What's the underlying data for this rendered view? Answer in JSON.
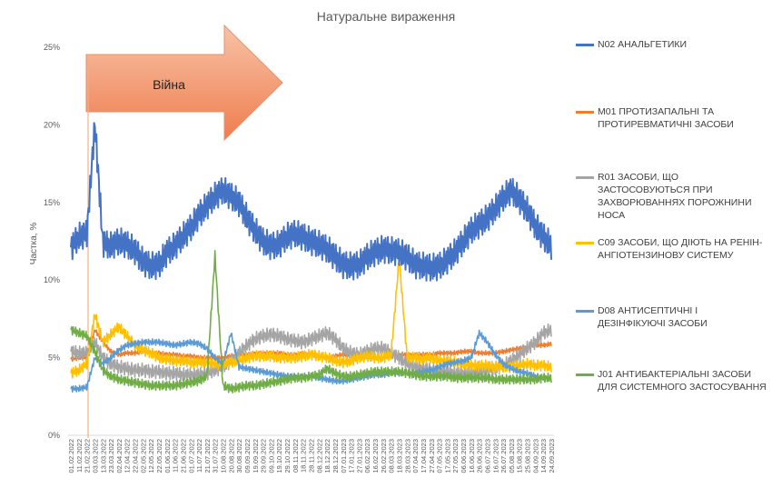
{
  "chart_data": {
    "type": "line",
    "title": "Натуральне вираження",
    "ylabel": "Частка, %",
    "xlabel": "",
    "ylim": [
      0,
      25
    ],
    "y_ticks": [
      "0%",
      "5%",
      "10%",
      "15%",
      "20%",
      "25%"
    ],
    "x_tick_labels": [
      "01.02.2022",
      "11.02.2022",
      "21.02.2022",
      "03.03.2022",
      "13.03.2022",
      "23.03.2022",
      "02.04.2022",
      "12.04.2022",
      "22.04.2022",
      "02.05.2022",
      "12.05.2022",
      "22.05.2022",
      "01.06.2022",
      "11.06.2022",
      "21.06.2022",
      "01.07.2022",
      "11.07.2022",
      "21.07.2022",
      "31.07.2022",
      "10.08.2022",
      "20.08.2022",
      "30.08.2022",
      "09.09.2022",
      "19.09.2022",
      "29.09.2022",
      "09.10.2022",
      "19.10.2022",
      "29.10.2022",
      "08.11.2022",
      "18.11.2022",
      "28.11.2022",
      "08.12.2022",
      "18.12.2022",
      "28.12.2022",
      "07.01.2023",
      "17.01.2023",
      "27.01.2023",
      "06.02.2023",
      "16.02.2023",
      "26.02.2023",
      "08.03.2023",
      "18.03.2023",
      "28.03.2023",
      "07.04.2023",
      "17.04.2023",
      "27.04.2023",
      "07.05.2023",
      "17.05.2023",
      "27.05.2023",
      "06.06.2023",
      "16.06.2023",
      "26.06.2023",
      "06.07.2023",
      "16.07.2023",
      "26.07.2023",
      "05.08.2023",
      "15.08.2023",
      "25.08.2023",
      "04.09.2023",
      "14.09.2023",
      "24.09.2023"
    ],
    "x_range": [
      "01.02.2022",
      "26.09.2023"
    ],
    "grid": "none",
    "legend_position": "right",
    "annotation": {
      "text": "Війна",
      "date": "24.02.2022"
    },
    "series": [
      {
        "name": "N02 АНАЛЬГЕТИКИ",
        "color": "#4472C4",
        "values": [
          12.1,
          12.8,
          13.0,
          20.1,
          12.4,
          12.2,
          12.5,
          12.3,
          11.9,
          11.2,
          10.9,
          11.0,
          11.8,
          12.2,
          12.8,
          13.4,
          14.2,
          14.8,
          15.4,
          15.8,
          15.4,
          15.0,
          14.0,
          13.2,
          12.5,
          12.2,
          12.3,
          12.8,
          13.0,
          12.8,
          12.5,
          12.3,
          12.0,
          11.5,
          11.0,
          10.9,
          11.0,
          11.5,
          11.8,
          12.0,
          11.9,
          11.8,
          11.5,
          11.0,
          10.9,
          10.8,
          10.9,
          11.3,
          11.8,
          12.5,
          13.2,
          13.6,
          14.0,
          14.6,
          15.3,
          15.8,
          15.2,
          14.5,
          13.5,
          12.8,
          12.2
        ]
      },
      {
        "name": "M01 ПРОТИЗАПАЛЬНІ ТА ПРОТИРЕВМАТИЧНІ ЗАСОБИ",
        "color": "#ED7D31",
        "values": [
          4.9,
          5.0,
          5.0,
          6.8,
          6.0,
          5.4,
          5.2,
          5.3,
          5.3,
          5.4,
          5.3,
          5.3,
          5.2,
          5.2,
          5.1,
          5.1,
          5.0,
          5.0,
          5.0,
          5.0,
          5.1,
          5.2,
          5.2,
          5.3,
          5.3,
          5.3,
          5.3,
          5.2,
          5.2,
          5.3,
          5.2,
          5.1,
          5.0,
          5.1,
          5.2,
          5.1,
          5.0,
          5.0,
          5.0,
          5.0,
          5.1,
          5.2,
          5.2,
          5.2,
          5.2,
          5.2,
          5.3,
          5.3,
          5.3,
          5.4,
          5.4,
          5.3,
          5.3,
          5.3,
          5.4,
          5.5,
          5.6,
          5.7,
          5.8,
          5.8,
          5.9
        ]
      },
      {
        "name": "R01 ЗАСОБИ, ЩО ЗАСТОСОВУЮТЬСЯ ПРИ ЗАХВОРЮВАННЯХ ПОРОЖНИНИ НОСА",
        "color": "#A5A5A5",
        "values": [
          5.4,
          5.3,
          5.3,
          6.0,
          5.0,
          4.6,
          4.4,
          4.3,
          4.2,
          4.2,
          4.1,
          4.1,
          4.0,
          4.0,
          3.9,
          3.9,
          3.9,
          4.0,
          4.2,
          4.4,
          4.8,
          5.3,
          5.8,
          6.2,
          6.4,
          6.5,
          6.4,
          6.2,
          6.1,
          6.0,
          6.2,
          6.4,
          6.6,
          6.2,
          5.6,
          5.3,
          5.2,
          5.4,
          5.6,
          5.6,
          5.3,
          5.0,
          4.6,
          4.4,
          4.3,
          4.2,
          4.1,
          4.1,
          4.0,
          4.0,
          4.0,
          4.1,
          4.2,
          4.3,
          4.5,
          4.8,
          5.2,
          5.6,
          6.0,
          6.6,
          6.8
        ]
      },
      {
        "name": "C09 ЗАСОБИ, ЩО ДІЮТЬ НА РЕНІН-АНГІОТЕНЗИНОВУ СИСТЕМУ",
        "color": "#FFC000",
        "values": [
          4.0,
          4.2,
          4.6,
          7.8,
          6.0,
          6.5,
          7.0,
          6.4,
          5.8,
          5.5,
          5.3,
          5.0,
          4.9,
          4.8,
          4.8,
          4.7,
          4.7,
          4.7,
          4.6,
          4.6,
          4.7,
          4.8,
          5.0,
          5.1,
          5.1,
          5.1,
          5.0,
          5.0,
          5.0,
          5.1,
          5.2,
          5.1,
          5.0,
          4.8,
          4.7,
          4.8,
          5.0,
          5.1,
          5.0,
          5.0,
          5.2,
          11.4,
          5.0,
          5.0,
          4.9,
          5.0,
          4.8,
          4.8,
          4.7,
          4.6,
          4.5,
          4.5,
          4.5,
          4.4,
          4.4,
          4.4,
          4.5,
          4.6,
          4.5,
          4.5,
          4.4
        ]
      },
      {
        "name": "D08 АНТИСЕПТИЧНІ І ДЕЗІНФІКУЮЧІ ЗАСОБИ",
        "color": "#5B9BD5",
        "values": [
          3.0,
          3.0,
          3.1,
          5.0,
          4.6,
          5.0,
          5.5,
          5.8,
          5.9,
          6.0,
          6.0,
          6.0,
          5.9,
          5.8,
          5.9,
          6.0,
          5.9,
          5.6,
          5.0,
          4.6,
          6.6,
          4.4,
          4.3,
          4.2,
          4.1,
          4.0,
          3.9,
          3.8,
          3.8,
          3.8,
          3.8,
          3.7,
          3.6,
          3.5,
          3.5,
          3.6,
          3.7,
          3.8,
          3.9,
          3.9,
          4.0,
          4.0,
          4.0,
          4.0,
          4.1,
          4.2,
          4.4,
          4.6,
          4.7,
          4.8,
          5.0,
          6.6,
          6.0,
          5.2,
          4.6,
          4.3,
          4.1,
          4.0,
          3.8,
          3.7,
          3.6
        ]
      },
      {
        "name": "J01 АНТИБАКТЕРІАЛЬНІ ЗАСОБИ ДЛЯ СИСТЕМНОГО ЗАСТОСУВАННЯ",
        "color": "#70AD47",
        "values": [
          6.8,
          6.6,
          6.4,
          5.4,
          4.2,
          3.8,
          3.6,
          3.5,
          3.4,
          3.3,
          3.2,
          3.2,
          3.2,
          3.2,
          3.3,
          3.4,
          3.5,
          3.8,
          11.6,
          3.2,
          3.0,
          3.1,
          3.2,
          3.2,
          3.3,
          3.4,
          3.5,
          3.6,
          3.7,
          3.7,
          3.8,
          3.9,
          4.3,
          4.0,
          3.8,
          3.8,
          3.9,
          4.0,
          4.1,
          4.1,
          4.1,
          4.1,
          4.0,
          3.9,
          3.8,
          3.8,
          3.8,
          3.8,
          3.7,
          3.7,
          3.7,
          3.7,
          3.7,
          3.6,
          3.6,
          3.6,
          3.6,
          3.6,
          3.6,
          3.7,
          3.7
        ]
      }
    ]
  }
}
